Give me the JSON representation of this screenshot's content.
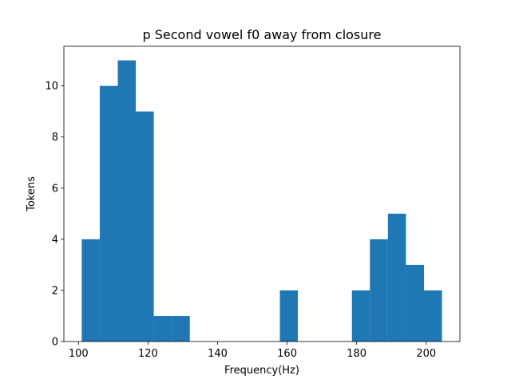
{
  "chart_data": {
    "type": "bar",
    "subtype": "histogram",
    "title": "p Second vowel f0 away from closure",
    "xlabel": "Frequency(Hz)",
    "ylabel": "Tokens",
    "xlim": [
      95.8,
      209.7
    ],
    "ylim": [
      0,
      11.55
    ],
    "xticks": [
      100,
      120,
      140,
      160,
      180,
      200
    ],
    "yticks": [
      0,
      2,
      4,
      6,
      8,
      10
    ],
    "bin_width": 5.18,
    "bin_edges": [
      100.94,
      106.12,
      111.3,
      116.48,
      121.66,
      126.84,
      132.02,
      137.2,
      142.38,
      147.56,
      152.74,
      157.92,
      163.1,
      168.28,
      173.46,
      178.64,
      183.82,
      189.0,
      194.18,
      199.36,
      204.54
    ],
    "counts": [
      4,
      10,
      11,
      9,
      1,
      1,
      0,
      0,
      0,
      0,
      0,
      2,
      0,
      0,
      0,
      2,
      4,
      5,
      3,
      2
    ],
    "bar_color": "#1f77b4"
  }
}
